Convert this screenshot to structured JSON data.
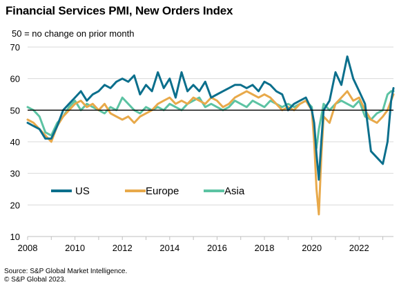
{
  "title": "Financial  Services PMI, New Orders Index",
  "subtitle": "50 = no change on prior month",
  "source": [
    "Source: S&P Global Market Intelligence.",
    "© S&P Global 2023."
  ],
  "chart_data": {
    "type": "line",
    "title": "Financial  Services PMI, New Orders Index",
    "subtitle": "50 = no change on prior month",
    "xlabel": "",
    "ylabel": "",
    "xlim": [
      2008,
      2023.45
    ],
    "ylim": [
      10,
      70
    ],
    "y_ticks": [
      10,
      20,
      30,
      40,
      50,
      60,
      70
    ],
    "x_ticks": [
      2008,
      2010,
      2012,
      2014,
      2016,
      2018,
      2020,
      2022
    ],
    "reference_line": 50,
    "grid": "horizontal",
    "legend_position": "bottom-left",
    "series": [
      {
        "name": "US",
        "color": "#0b6f8c",
        "points": [
          [
            2008.0,
            46
          ],
          [
            2008.25,
            45
          ],
          [
            2008.5,
            44
          ],
          [
            2008.75,
            41
          ],
          [
            2009.0,
            41
          ],
          [
            2009.25,
            45
          ],
          [
            2009.5,
            50
          ],
          [
            2009.75,
            52
          ],
          [
            2010.0,
            54
          ],
          [
            2010.25,
            56
          ],
          [
            2010.5,
            53
          ],
          [
            2010.75,
            55
          ],
          [
            2011.0,
            56
          ],
          [
            2011.25,
            58
          ],
          [
            2011.5,
            57
          ],
          [
            2011.75,
            59
          ],
          [
            2012.0,
            60
          ],
          [
            2012.25,
            59
          ],
          [
            2012.5,
            61
          ],
          [
            2012.75,
            55
          ],
          [
            2013.0,
            58
          ],
          [
            2013.25,
            56
          ],
          [
            2013.5,
            62
          ],
          [
            2013.75,
            57
          ],
          [
            2014.0,
            60
          ],
          [
            2014.25,
            54
          ],
          [
            2014.5,
            62
          ],
          [
            2014.75,
            56
          ],
          [
            2015.0,
            58
          ],
          [
            2015.25,
            56
          ],
          [
            2015.5,
            59
          ],
          [
            2015.75,
            54
          ],
          [
            2016.0,
            55
          ],
          [
            2016.25,
            56
          ],
          [
            2016.5,
            57
          ],
          [
            2016.75,
            58
          ],
          [
            2017.0,
            58
          ],
          [
            2017.25,
            57
          ],
          [
            2017.5,
            58
          ],
          [
            2017.75,
            56
          ],
          [
            2018.0,
            59
          ],
          [
            2018.25,
            58
          ],
          [
            2018.5,
            56
          ],
          [
            2018.75,
            55
          ],
          [
            2019.0,
            50
          ],
          [
            2019.25,
            52
          ],
          [
            2019.5,
            53
          ],
          [
            2019.75,
            54
          ],
          [
            2020.0,
            50
          ],
          [
            2020.1,
            46
          ],
          [
            2020.2,
            36
          ],
          [
            2020.3,
            28
          ],
          [
            2020.4,
            40
          ],
          [
            2020.5,
            50
          ],
          [
            2020.75,
            53
          ],
          [
            2021.0,
            62
          ],
          [
            2021.25,
            58
          ],
          [
            2021.5,
            67
          ],
          [
            2021.75,
            60
          ],
          [
            2022.0,
            56
          ],
          [
            2022.25,
            52
          ],
          [
            2022.5,
            37
          ],
          [
            2022.75,
            35
          ],
          [
            2023.0,
            33
          ],
          [
            2023.2,
            40
          ],
          [
            2023.35,
            53
          ],
          [
            2023.45,
            57
          ]
        ]
      },
      {
        "name": "Europe",
        "color": "#e8a94a",
        "points": [
          [
            2008.0,
            47
          ],
          [
            2008.25,
            46
          ],
          [
            2008.5,
            44
          ],
          [
            2008.75,
            42
          ],
          [
            2009.0,
            40
          ],
          [
            2009.25,
            45
          ],
          [
            2009.5,
            48
          ],
          [
            2009.75,
            50
          ],
          [
            2010.0,
            52
          ],
          [
            2010.25,
            53
          ],
          [
            2010.5,
            51
          ],
          [
            2010.75,
            52
          ],
          [
            2011.0,
            50
          ],
          [
            2011.25,
            52
          ],
          [
            2011.5,
            49
          ],
          [
            2011.75,
            48
          ],
          [
            2012.0,
            47
          ],
          [
            2012.25,
            48
          ],
          [
            2012.5,
            46
          ],
          [
            2012.75,
            48
          ],
          [
            2013.0,
            49
          ],
          [
            2013.25,
            50
          ],
          [
            2013.5,
            52
          ],
          [
            2013.75,
            53
          ],
          [
            2014.0,
            54
          ],
          [
            2014.25,
            52
          ],
          [
            2014.5,
            53
          ],
          [
            2014.75,
            52
          ],
          [
            2015.0,
            54
          ],
          [
            2015.25,
            53
          ],
          [
            2015.5,
            52
          ],
          [
            2015.75,
            54
          ],
          [
            2016.0,
            53
          ],
          [
            2016.25,
            51
          ],
          [
            2016.5,
            52
          ],
          [
            2016.75,
            54
          ],
          [
            2017.0,
            55
          ],
          [
            2017.25,
            56
          ],
          [
            2017.5,
            55
          ],
          [
            2017.75,
            54
          ],
          [
            2018.0,
            55
          ],
          [
            2018.25,
            54
          ],
          [
            2018.5,
            52
          ],
          [
            2018.75,
            50
          ],
          [
            2019.0,
            51
          ],
          [
            2019.25,
            50
          ],
          [
            2019.5,
            52
          ],
          [
            2019.75,
            53
          ],
          [
            2020.0,
            50
          ],
          [
            2020.1,
            40
          ],
          [
            2020.2,
            25
          ],
          [
            2020.3,
            17
          ],
          [
            2020.4,
            35
          ],
          [
            2020.5,
            48
          ],
          [
            2020.75,
            46
          ],
          [
            2021.0,
            52
          ],
          [
            2021.25,
            54
          ],
          [
            2021.5,
            56
          ],
          [
            2021.75,
            53
          ],
          [
            2022.0,
            54
          ],
          [
            2022.25,
            50
          ],
          [
            2022.5,
            47
          ],
          [
            2022.75,
            46
          ],
          [
            2023.0,
            48
          ],
          [
            2023.2,
            50
          ],
          [
            2023.35,
            53
          ],
          [
            2023.45,
            55
          ]
        ]
      },
      {
        "name": "Asia",
        "color": "#5cc3a3",
        "points": [
          [
            2008.0,
            51
          ],
          [
            2008.25,
            50
          ],
          [
            2008.5,
            48
          ],
          [
            2008.75,
            43
          ],
          [
            2009.0,
            42
          ],
          [
            2009.25,
            46
          ],
          [
            2009.5,
            48
          ],
          [
            2009.75,
            51
          ],
          [
            2010.0,
            53
          ],
          [
            2010.25,
            50
          ],
          [
            2010.5,
            52
          ],
          [
            2010.75,
            51
          ],
          [
            2011.0,
            50
          ],
          [
            2011.25,
            49
          ],
          [
            2011.5,
            51
          ],
          [
            2011.75,
            50
          ],
          [
            2012.0,
            54
          ],
          [
            2012.25,
            52
          ],
          [
            2012.5,
            50
          ],
          [
            2012.75,
            49
          ],
          [
            2013.0,
            51
          ],
          [
            2013.25,
            50
          ],
          [
            2013.5,
            51
          ],
          [
            2013.75,
            50
          ],
          [
            2014.0,
            52
          ],
          [
            2014.25,
            51
          ],
          [
            2014.5,
            50
          ],
          [
            2014.75,
            52
          ],
          [
            2015.0,
            53
          ],
          [
            2015.25,
            54
          ],
          [
            2015.5,
            51
          ],
          [
            2015.75,
            52
          ],
          [
            2016.0,
            51
          ],
          [
            2016.25,
            50
          ],
          [
            2016.5,
            51
          ],
          [
            2016.75,
            53
          ],
          [
            2017.0,
            52
          ],
          [
            2017.25,
            51
          ],
          [
            2017.5,
            53
          ],
          [
            2017.75,
            52
          ],
          [
            2018.0,
            51
          ],
          [
            2018.25,
            53
          ],
          [
            2018.5,
            52
          ],
          [
            2018.75,
            51
          ],
          [
            2019.0,
            52
          ],
          [
            2019.25,
            51
          ],
          [
            2019.5,
            52
          ],
          [
            2019.75,
            53
          ],
          [
            2020.0,
            51
          ],
          [
            2020.1,
            42
          ],
          [
            2020.2,
            38
          ],
          [
            2020.3,
            44
          ],
          [
            2020.4,
            48
          ],
          [
            2020.5,
            52
          ],
          [
            2020.75,
            50
          ],
          [
            2021.0,
            52
          ],
          [
            2021.25,
            53
          ],
          [
            2021.5,
            52
          ],
          [
            2021.75,
            51
          ],
          [
            2022.0,
            53
          ],
          [
            2022.25,
            48
          ],
          [
            2022.5,
            47
          ],
          [
            2022.75,
            49
          ],
          [
            2023.0,
            50
          ],
          [
            2023.2,
            55
          ],
          [
            2023.35,
            56
          ],
          [
            2023.45,
            56
          ]
        ]
      }
    ]
  }
}
